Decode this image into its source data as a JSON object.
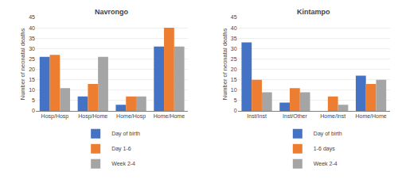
{
  "chart_data": [
    {
      "type": "bar",
      "title": "Navrongo",
      "categories": [
        "Hosp/Hosp",
        "Hosp/Home",
        "Home/Hosp",
        "Home/Home"
      ],
      "series": [
        {
          "name": "Day of birth",
          "color": "#4472c4",
          "values": [
            26,
            7,
            3,
            31
          ]
        },
        {
          "name": "Day 1-6",
          "color": "#ed7d31",
          "values": [
            27,
            13,
            7,
            40
          ]
        },
        {
          "name": "Week 2-4",
          "color": "#a5a5a5",
          "values": [
            11,
            26,
            7,
            31
          ]
        }
      ],
      "ylabel": "Number of neonatal deaths",
      "ylim": [
        0,
        45
      ],
      "yticks": [
        0,
        5,
        10,
        15,
        20,
        25,
        30,
        35,
        40,
        45
      ],
      "grid": true,
      "legend": "bottom"
    },
    {
      "type": "bar",
      "title": "Kintampo",
      "categories": [
        "Inst/Inst",
        "Inst/Other",
        "Home/Inst",
        "Home/Home"
      ],
      "series": [
        {
          "name": "Day of birth",
          "color": "#4472c4",
          "values": [
            33,
            4,
            0,
            17
          ]
        },
        {
          "name": "1-6 days",
          "color": "#ed7d31",
          "values": [
            15,
            11,
            7,
            13
          ]
        },
        {
          "name": "Week 2-4",
          "color": "#a5a5a5",
          "values": [
            9,
            9,
            3,
            15
          ]
        }
      ],
      "ylabel": "Number of neonatal deaths",
      "ylim": [
        0,
        45
      ],
      "yticks": [
        0,
        5,
        10,
        15,
        20,
        25,
        30,
        35,
        40,
        45
      ],
      "grid": true,
      "legend": "bottom"
    }
  ]
}
